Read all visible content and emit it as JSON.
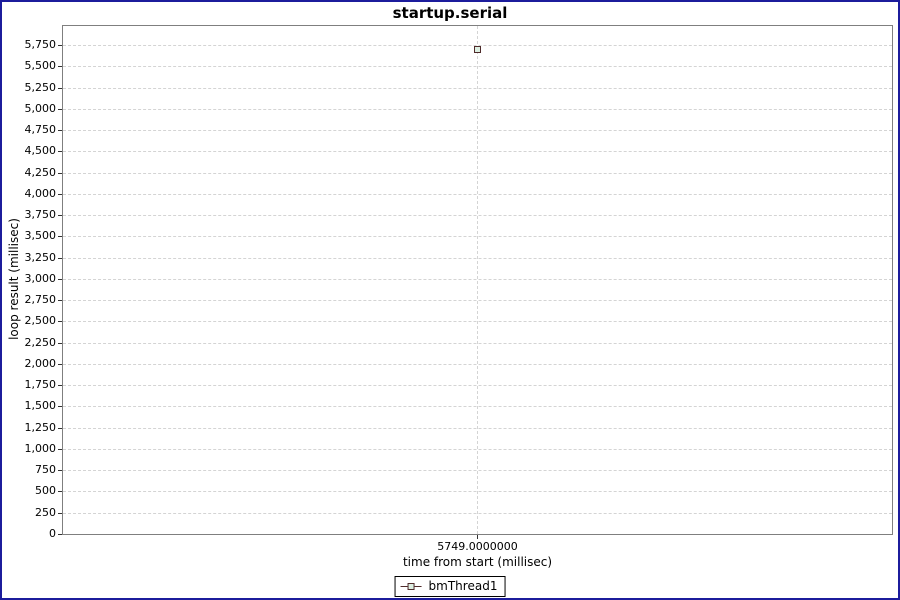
{
  "window": {
    "border_color": "#1c1c9c",
    "background": "#ffffff"
  },
  "chart_data": {
    "type": "scatter",
    "title": "startup.serial",
    "xlabel": "time from start (millisec)",
    "ylabel": "loop result (millisec)",
    "series": [
      {
        "name": "bmThread1",
        "points": [
          {
            "x": 5749.0,
            "y": 5700
          }
        ]
      }
    ],
    "x_tick_labels": [
      "5749.0000000"
    ],
    "y_tick_values": [
      0,
      250,
      500,
      750,
      1000,
      1250,
      1500,
      1750,
      2000,
      2250,
      2500,
      2750,
      3000,
      3250,
      3500,
      3750,
      4000,
      4250,
      4500,
      4750,
      5000,
      5250,
      5500,
      5750
    ],
    "y_tick_labels": [
      "0",
      "250",
      "500",
      "750",
      "1,000",
      "1,250",
      "1,500",
      "1,750",
      "2,000",
      "2,250",
      "2,500",
      "2,750",
      "3,000",
      "3,250",
      "3,500",
      "3,750",
      "4,000",
      "4,250",
      "4,500",
      "4,750",
      "5,000",
      "5,250",
      "5,500",
      "5,750"
    ],
    "ylim": [
      0,
      5985
    ],
    "grid": "dashed",
    "gridline_color": "#d4d4d4",
    "plot_border_color": "#7f7f7f",
    "marker": {
      "shape": "square",
      "stroke": "#4f2b2b",
      "fill": "#ddefe2"
    },
    "legend_position": "bottom"
  }
}
